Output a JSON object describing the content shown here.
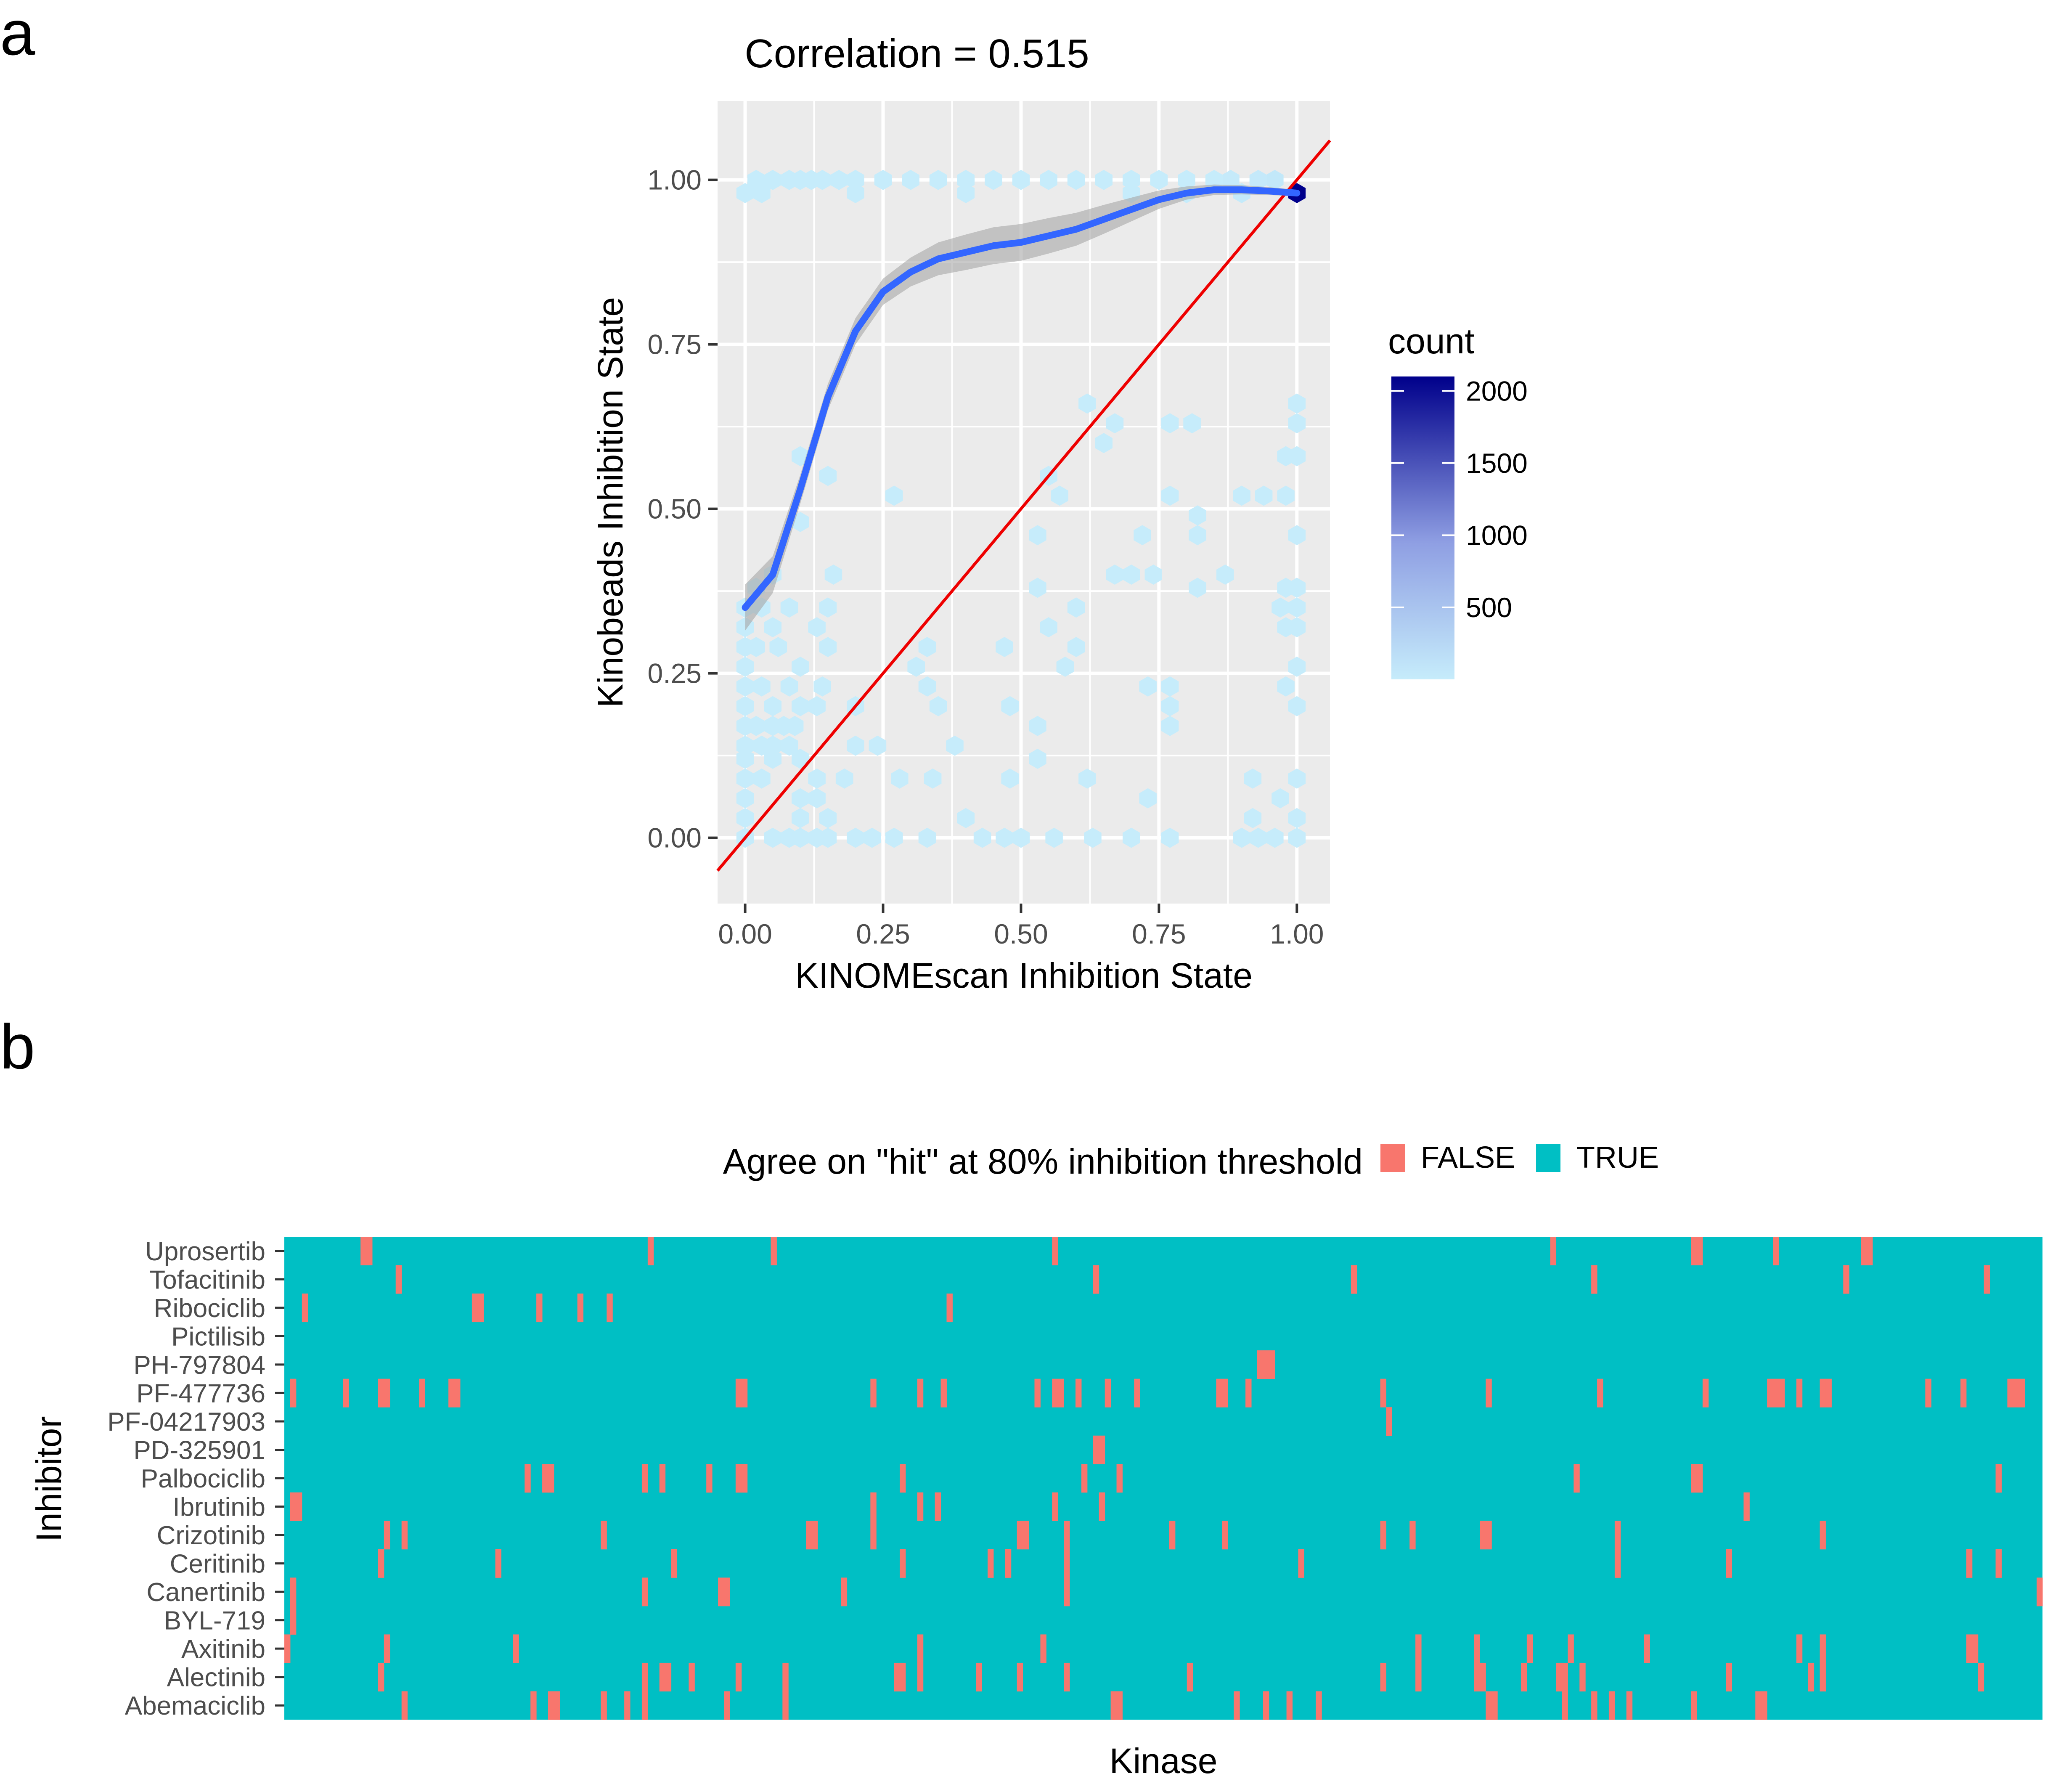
{
  "panel_a_label": "a",
  "panel_b_label": "b",
  "chart_data": [
    {
      "type": "scatter",
      "subtype": "hexbin",
      "title": "Correlation = 0.515",
      "xlabel": "KINOMEscan Inhibition State",
      "ylabel": "Kinobeads Inhibition State",
      "xlim": [
        -0.05,
        1.06
      ],
      "ylim": [
        -0.1,
        1.12
      ],
      "x_ticks": [
        "0.00",
        "0.25",
        "0.50",
        "0.75",
        "1.00"
      ],
      "y_ticks": [
        "0.00",
        "0.25",
        "0.50",
        "0.75",
        "1.00"
      ],
      "grid": true,
      "legend": {
        "title": "count",
        "position": "right",
        "type": "gradient",
        "range": [
          1,
          2100
        ],
        "ticks": [
          "2000",
          "1500",
          "1000",
          "500"
        ],
        "colors": {
          "low": "#c6ecfb",
          "high": "#00008b"
        }
      },
      "identity_line": {
        "color": "#ee0000",
        "from": [
          -0.05,
          -0.05
        ],
        "to": [
          1.06,
          1.06
        ]
      },
      "smooth_line": {
        "color": "#3366ff",
        "band_color": "#a6a6a6",
        "x": [
          0.0,
          0.05,
          0.1,
          0.15,
          0.2,
          0.25,
          0.3,
          0.35,
          0.4,
          0.45,
          0.5,
          0.55,
          0.6,
          0.65,
          0.7,
          0.75,
          0.8,
          0.85,
          0.9,
          0.95,
          1.0
        ],
        "y": [
          0.35,
          0.4,
          0.53,
          0.67,
          0.77,
          0.83,
          0.86,
          0.88,
          0.89,
          0.9,
          0.905,
          0.915,
          0.925,
          0.94,
          0.955,
          0.97,
          0.98,
          0.985,
          0.985,
          0.983,
          0.98
        ],
        "band_half_width": [
          0.035,
          0.028,
          0.022,
          0.02,
          0.02,
          0.02,
          0.022,
          0.025,
          0.027,
          0.028,
          0.028,
          0.027,
          0.025,
          0.022,
          0.018,
          0.014,
          0.01,
          0.008,
          0.007,
          0.006,
          0.005
        ]
      },
      "hex_bins": [
        [
          1.0,
          0.98,
          2100
        ],
        [
          0.96,
          1.0,
          40
        ],
        [
          0.93,
          1.0,
          25
        ],
        [
          0.9,
          0.98,
          20
        ],
        [
          0.88,
          1.0,
          15
        ],
        [
          0.0,
          0.98,
          5
        ],
        [
          0.02,
          1.0,
          4
        ],
        [
          0.03,
          0.98,
          3
        ],
        [
          0.05,
          1.0,
          3
        ],
        [
          0.08,
          1.0,
          3
        ],
        [
          0.1,
          1.0,
          3
        ],
        [
          0.12,
          1.0,
          4
        ],
        [
          0.14,
          1.0,
          3
        ],
        [
          0.17,
          1.0,
          3
        ],
        [
          0.2,
          1.0,
          3
        ],
        [
          0.2,
          0.98,
          2
        ],
        [
          0.25,
          1.0,
          3
        ],
        [
          0.3,
          1.0,
          3
        ],
        [
          0.35,
          1.0,
          3
        ],
        [
          0.4,
          1.0,
          3
        ],
        [
          0.4,
          0.98,
          2
        ],
        [
          0.45,
          1.0,
          3
        ],
        [
          0.5,
          1.0,
          3
        ],
        [
          0.55,
          1.0,
          4
        ],
        [
          0.6,
          1.0,
          4
        ],
        [
          0.65,
          1.0,
          3
        ],
        [
          0.7,
          1.0,
          4
        ],
        [
          0.75,
          1.0,
          4
        ],
        [
          0.8,
          1.0,
          5
        ],
        [
          0.85,
          1.0,
          5
        ],
        [
          0.8,
          0.98,
          4
        ],
        [
          0.7,
          0.98,
          3
        ],
        [
          0.62,
          0.66,
          2
        ],
        [
          0.65,
          0.6,
          2
        ],
        [
          0.67,
          0.63,
          2
        ],
        [
          0.77,
          0.63,
          2
        ],
        [
          0.81,
          0.63,
          2
        ],
        [
          1.0,
          0.66,
          2
        ],
        [
          1.0,
          0.63,
          2
        ],
        [
          0.98,
          0.58,
          2
        ],
        [
          1.0,
          0.58,
          2
        ],
        [
          0.1,
          0.58,
          2
        ],
        [
          0.15,
          0.55,
          2
        ],
        [
          0.55,
          0.55,
          2
        ],
        [
          0.27,
          0.52,
          2
        ],
        [
          0.57,
          0.52,
          2
        ],
        [
          0.77,
          0.52,
          2
        ],
        [
          0.9,
          0.52,
          2
        ],
        [
          0.94,
          0.52,
          2
        ],
        [
          0.98,
          0.52,
          2
        ],
        [
          0.82,
          0.49,
          2
        ],
        [
          0.1,
          0.48,
          2
        ],
        [
          0.53,
          0.46,
          2
        ],
        [
          0.72,
          0.46,
          2
        ],
        [
          0.82,
          0.46,
          2
        ],
        [
          1.0,
          0.46,
          2
        ],
        [
          0.67,
          0.4,
          2
        ],
        [
          0.7,
          0.4,
          2
        ],
        [
          0.74,
          0.4,
          2
        ],
        [
          0.87,
          0.4,
          2
        ],
        [
          0.16,
          0.4,
          2
        ],
        [
          0.05,
          0.4,
          2
        ],
        [
          0.02,
          0.38,
          2
        ],
        [
          0.53,
          0.38,
          2
        ],
        [
          0.82,
          0.38,
          2
        ],
        [
          0.98,
          0.38,
          3
        ],
        [
          1.0,
          0.38,
          4
        ],
        [
          0.0,
          0.35,
          3
        ],
        [
          0.03,
          0.35,
          3
        ],
        [
          0.08,
          0.35,
          2
        ],
        [
          0.15,
          0.35,
          2
        ],
        [
          0.6,
          0.35,
          2
        ],
        [
          0.97,
          0.35,
          4
        ],
        [
          1.0,
          0.35,
          5
        ],
        [
          0.0,
          0.32,
          3
        ],
        [
          0.05,
          0.32,
          3
        ],
        [
          0.13,
          0.32,
          2
        ],
        [
          0.55,
          0.32,
          2
        ],
        [
          0.98,
          0.32,
          4
        ],
        [
          1.0,
          0.32,
          3
        ],
        [
          0.0,
          0.29,
          4
        ],
        [
          0.02,
          0.29,
          3
        ],
        [
          0.06,
          0.29,
          3
        ],
        [
          0.15,
          0.29,
          2
        ],
        [
          0.33,
          0.29,
          2
        ],
        [
          0.47,
          0.29,
          2
        ],
        [
          0.6,
          0.29,
          2
        ],
        [
          0.0,
          0.26,
          4
        ],
        [
          0.1,
          0.26,
          2
        ],
        [
          0.31,
          0.26,
          2
        ],
        [
          0.58,
          0.26,
          2
        ],
        [
          1.0,
          0.26,
          3
        ],
        [
          0.0,
          0.23,
          4
        ],
        [
          0.03,
          0.23,
          3
        ],
        [
          0.08,
          0.23,
          2
        ],
        [
          0.14,
          0.23,
          2
        ],
        [
          0.33,
          0.23,
          2
        ],
        [
          0.73,
          0.23,
          2
        ],
        [
          0.77,
          0.23,
          2
        ],
        [
          0.98,
          0.23,
          3
        ],
        [
          0.0,
          0.2,
          4
        ],
        [
          0.05,
          0.2,
          3
        ],
        [
          0.1,
          0.2,
          3
        ],
        [
          0.13,
          0.2,
          2
        ],
        [
          0.2,
          0.2,
          2
        ],
        [
          0.35,
          0.2,
          2
        ],
        [
          0.48,
          0.2,
          2
        ],
        [
          0.77,
          0.2,
          2
        ],
        [
          1.0,
          0.2,
          3
        ],
        [
          0.0,
          0.17,
          5
        ],
        [
          0.02,
          0.17,
          5
        ],
        [
          0.05,
          0.17,
          5
        ],
        [
          0.07,
          0.17,
          4
        ],
        [
          0.09,
          0.17,
          3
        ],
        [
          0.53,
          0.17,
          2
        ],
        [
          0.77,
          0.17,
          2
        ],
        [
          0.0,
          0.14,
          5
        ],
        [
          0.03,
          0.14,
          5
        ],
        [
          0.05,
          0.14,
          5
        ],
        [
          0.08,
          0.14,
          4
        ],
        [
          0.2,
          0.14,
          2
        ],
        [
          0.24,
          0.14,
          2
        ],
        [
          0.38,
          0.14,
          2
        ],
        [
          0.0,
          0.12,
          4
        ],
        [
          0.05,
          0.12,
          4
        ],
        [
          0.1,
          0.12,
          3
        ],
        [
          0.0,
          0.09,
          4
        ],
        [
          0.03,
          0.09,
          3
        ],
        [
          0.13,
          0.09,
          3
        ],
        [
          0.18,
          0.09,
          2
        ],
        [
          0.28,
          0.09,
          2
        ],
        [
          0.34,
          0.09,
          2
        ],
        [
          0.48,
          0.09,
          2
        ],
        [
          0.62,
          0.09,
          2
        ],
        [
          0.92,
          0.09,
          2
        ],
        [
          1.0,
          0.09,
          2
        ],
        [
          0.0,
          0.06,
          4
        ],
        [
          0.1,
          0.06,
          4
        ],
        [
          0.13,
          0.06,
          3
        ],
        [
          0.53,
          0.12,
          2
        ],
        [
          0.97,
          0.06,
          2
        ],
        [
          0.0,
          0.03,
          3
        ],
        [
          0.1,
          0.03,
          4
        ],
        [
          0.15,
          0.03,
          3
        ],
        [
          0.4,
          0.03,
          2
        ],
        [
          0.73,
          0.06,
          2
        ],
        [
          0.92,
          0.03,
          2
        ],
        [
          1.0,
          0.03,
          2
        ],
        [
          0.0,
          0.0,
          3
        ],
        [
          0.05,
          0.0,
          3
        ],
        [
          0.08,
          0.0,
          4
        ],
        [
          0.1,
          0.0,
          4
        ],
        [
          0.13,
          0.0,
          3
        ],
        [
          0.15,
          0.0,
          3
        ],
        [
          0.2,
          0.0,
          3
        ],
        [
          0.23,
          0.0,
          3
        ],
        [
          0.27,
          0.0,
          2
        ],
        [
          0.33,
          0.0,
          2
        ],
        [
          0.43,
          0.0,
          2
        ],
        [
          0.47,
          0.0,
          2
        ],
        [
          0.5,
          0.0,
          2
        ],
        [
          0.56,
          0.0,
          2
        ],
        [
          0.63,
          0.0,
          2
        ],
        [
          0.7,
          0.0,
          2
        ],
        [
          0.77,
          0.0,
          2
        ],
        [
          0.9,
          0.0,
          2
        ],
        [
          0.93,
          0.0,
          2
        ],
        [
          0.96,
          0.0,
          2
        ],
        [
          1.0,
          0.0,
          2
        ]
      ]
    },
    {
      "type": "heatmap",
      "title": "",
      "xlabel": "Kinase",
      "ylabel": "Inhibitor",
      "legend": {
        "title": "Agree on \"hit\" at 80% inhibition threshold",
        "position": "top",
        "entries": [
          {
            "label": "FALSE",
            "color": "#f8766d"
          },
          {
            "label": "TRUE",
            "color": "#00bfc4"
          }
        ]
      },
      "n_columns": 300,
      "default_value": "TRUE",
      "rows": [
        "Uprosertib",
        "Tofacitinib",
        "Ribociclib",
        "Pictilisib",
        "PH-797804",
        "PF-477736",
        "PF-04217903",
        "PD-325901",
        "Palbociclib",
        "Ibrutinib",
        "Crizotinib",
        "Ceritinib",
        "Canertinib",
        "BYL-719",
        "Axitinib",
        "Alectinib",
        "Abemaciclib"
      ],
      "false_columns": {
        "Uprosertib": [
          13,
          14,
          62,
          83,
          131,
          216,
          240,
          241,
          254,
          269,
          270
        ],
        "Tofacitinib": [
          19,
          138,
          182,
          223,
          266,
          290
        ],
        "Ribociclib": [
          3,
          32,
          33,
          43,
          50,
          55,
          113
        ],
        "Pictilisib": [],
        "PH-797804": [
          166,
          167,
          168
        ],
        "PF-477736": [
          1,
          10,
          16,
          17,
          23,
          28,
          29,
          77,
          78,
          100,
          108,
          112,
          128,
          131,
          132,
          135,
          140,
          145,
          159,
          160,
          164,
          187,
          205,
          224,
          242,
          253,
          254,
          255,
          258,
          262,
          263,
          280,
          286,
          294,
          295,
          296
        ],
        "PF-04217903": [
          188
        ],
        "PD-325901": [
          138,
          139
        ],
        "Palbociclib": [
          41,
          44,
          45,
          61,
          64,
          72,
          77,
          78,
          105,
          136,
          142,
          220,
          240,
          241,
          292
        ],
        "Ibrutinib": [
          1,
          2,
          100,
          108,
          111,
          131,
          139,
          249
        ],
        "Crizotinib": [
          17,
          20,
          54,
          89,
          90,
          100,
          125,
          126,
          133,
          151,
          160,
          187,
          192,
          204,
          205,
          227,
          262
        ],
        "Ceritinib": [
          16,
          36,
          66,
          105,
          120,
          123,
          133,
          173,
          227,
          246,
          287,
          292
        ],
        "Canertinib": [
          1,
          61,
          74,
          75,
          95,
          133,
          299
        ],
        "BYL-719": [
          1
        ],
        "Axitinib": [
          0,
          17,
          39,
          108,
          129,
          193,
          203,
          212,
          219,
          232,
          258,
          262,
          287,
          288
        ],
        "Alectinib": [
          16,
          61,
          64,
          65,
          69,
          77,
          85,
          104,
          105,
          108,
          118,
          125,
          133,
          154,
          187,
          193,
          203,
          204,
          211,
          217,
          218,
          221,
          246,
          260,
          262,
          289
        ],
        "Abemaciclib": [
          20,
          42,
          45,
          46,
          54,
          58,
          61,
          75,
          85,
          141,
          142,
          162,
          167,
          171,
          176,
          205,
          206,
          218,
          223,
          226,
          229,
          240,
          251,
          252
        ]
      }
    }
  ]
}
